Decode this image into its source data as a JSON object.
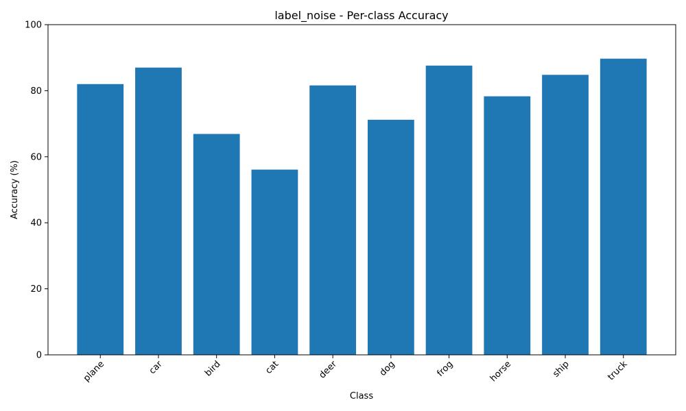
{
  "chart_data": {
    "type": "bar",
    "title": "label_noise - Per-class Accuracy",
    "xlabel": "Class",
    "ylabel": "Accuracy (%)",
    "categories": [
      "plane",
      "car",
      "bird",
      "cat",
      "deer",
      "dog",
      "frog",
      "horse",
      "ship",
      "truck"
    ],
    "values": [
      82.0,
      87.0,
      66.9,
      56.1,
      81.6,
      71.2,
      87.6,
      78.3,
      84.8,
      89.7
    ],
    "ylim": [
      0,
      100
    ],
    "yticks": [
      0,
      20,
      40,
      60,
      80,
      100
    ],
    "grid": false,
    "bar_color": "#1f77b4"
  }
}
